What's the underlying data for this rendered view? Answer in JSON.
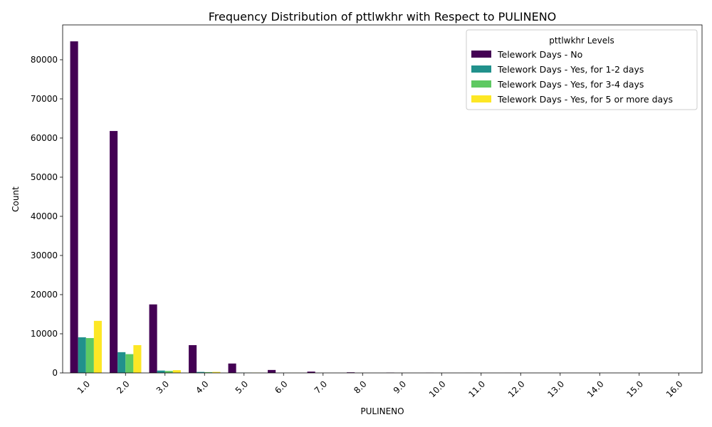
{
  "chart_data": {
    "type": "bar",
    "title": "Frequency Distribution of pttlwkhr with Respect to PULINENO",
    "xlabel": "PULINENO",
    "ylabel": "Count",
    "ylim": [
      0,
      88900
    ],
    "yticks": [
      0,
      10000,
      20000,
      30000,
      40000,
      50000,
      60000,
      70000,
      80000
    ],
    "categories": [
      "1.0",
      "2.0",
      "3.0",
      "4.0",
      "5.0",
      "6.0",
      "7.0",
      "8.0",
      "9.0",
      "10.0",
      "11.0",
      "12.0",
      "13.0",
      "14.0",
      "15.0",
      "16.0"
    ],
    "legend": {
      "title": "pttlwkhr Levels",
      "placement": "top-right"
    },
    "grid": false,
    "series": [
      {
        "name": "Telework Days - No",
        "color": "#440154",
        "values": [
          84700,
          61800,
          17500,
          7100,
          2400,
          750,
          330,
          150,
          70,
          30,
          15,
          10,
          5,
          3,
          2,
          1
        ]
      },
      {
        "name": "Telework Days - Yes, for 1-2 days",
        "color": "#21918c",
        "values": [
          9100,
          5300,
          600,
          250,
          60,
          20,
          8,
          4,
          2,
          1,
          0,
          0,
          0,
          0,
          0,
          0
        ]
      },
      {
        "name": "Telework Days - Yes, for 3-4 days",
        "color": "#5ec962",
        "values": [
          8900,
          4800,
          500,
          200,
          50,
          15,
          6,
          3,
          1,
          1,
          0,
          0,
          0,
          0,
          0,
          0
        ]
      },
      {
        "name": "Telework Days - Yes, for 5 or more days",
        "color": "#fde725",
        "values": [
          13300,
          7100,
          700,
          250,
          60,
          20,
          8,
          3,
          1,
          1,
          0,
          0,
          0,
          0,
          0,
          0
        ]
      }
    ]
  }
}
